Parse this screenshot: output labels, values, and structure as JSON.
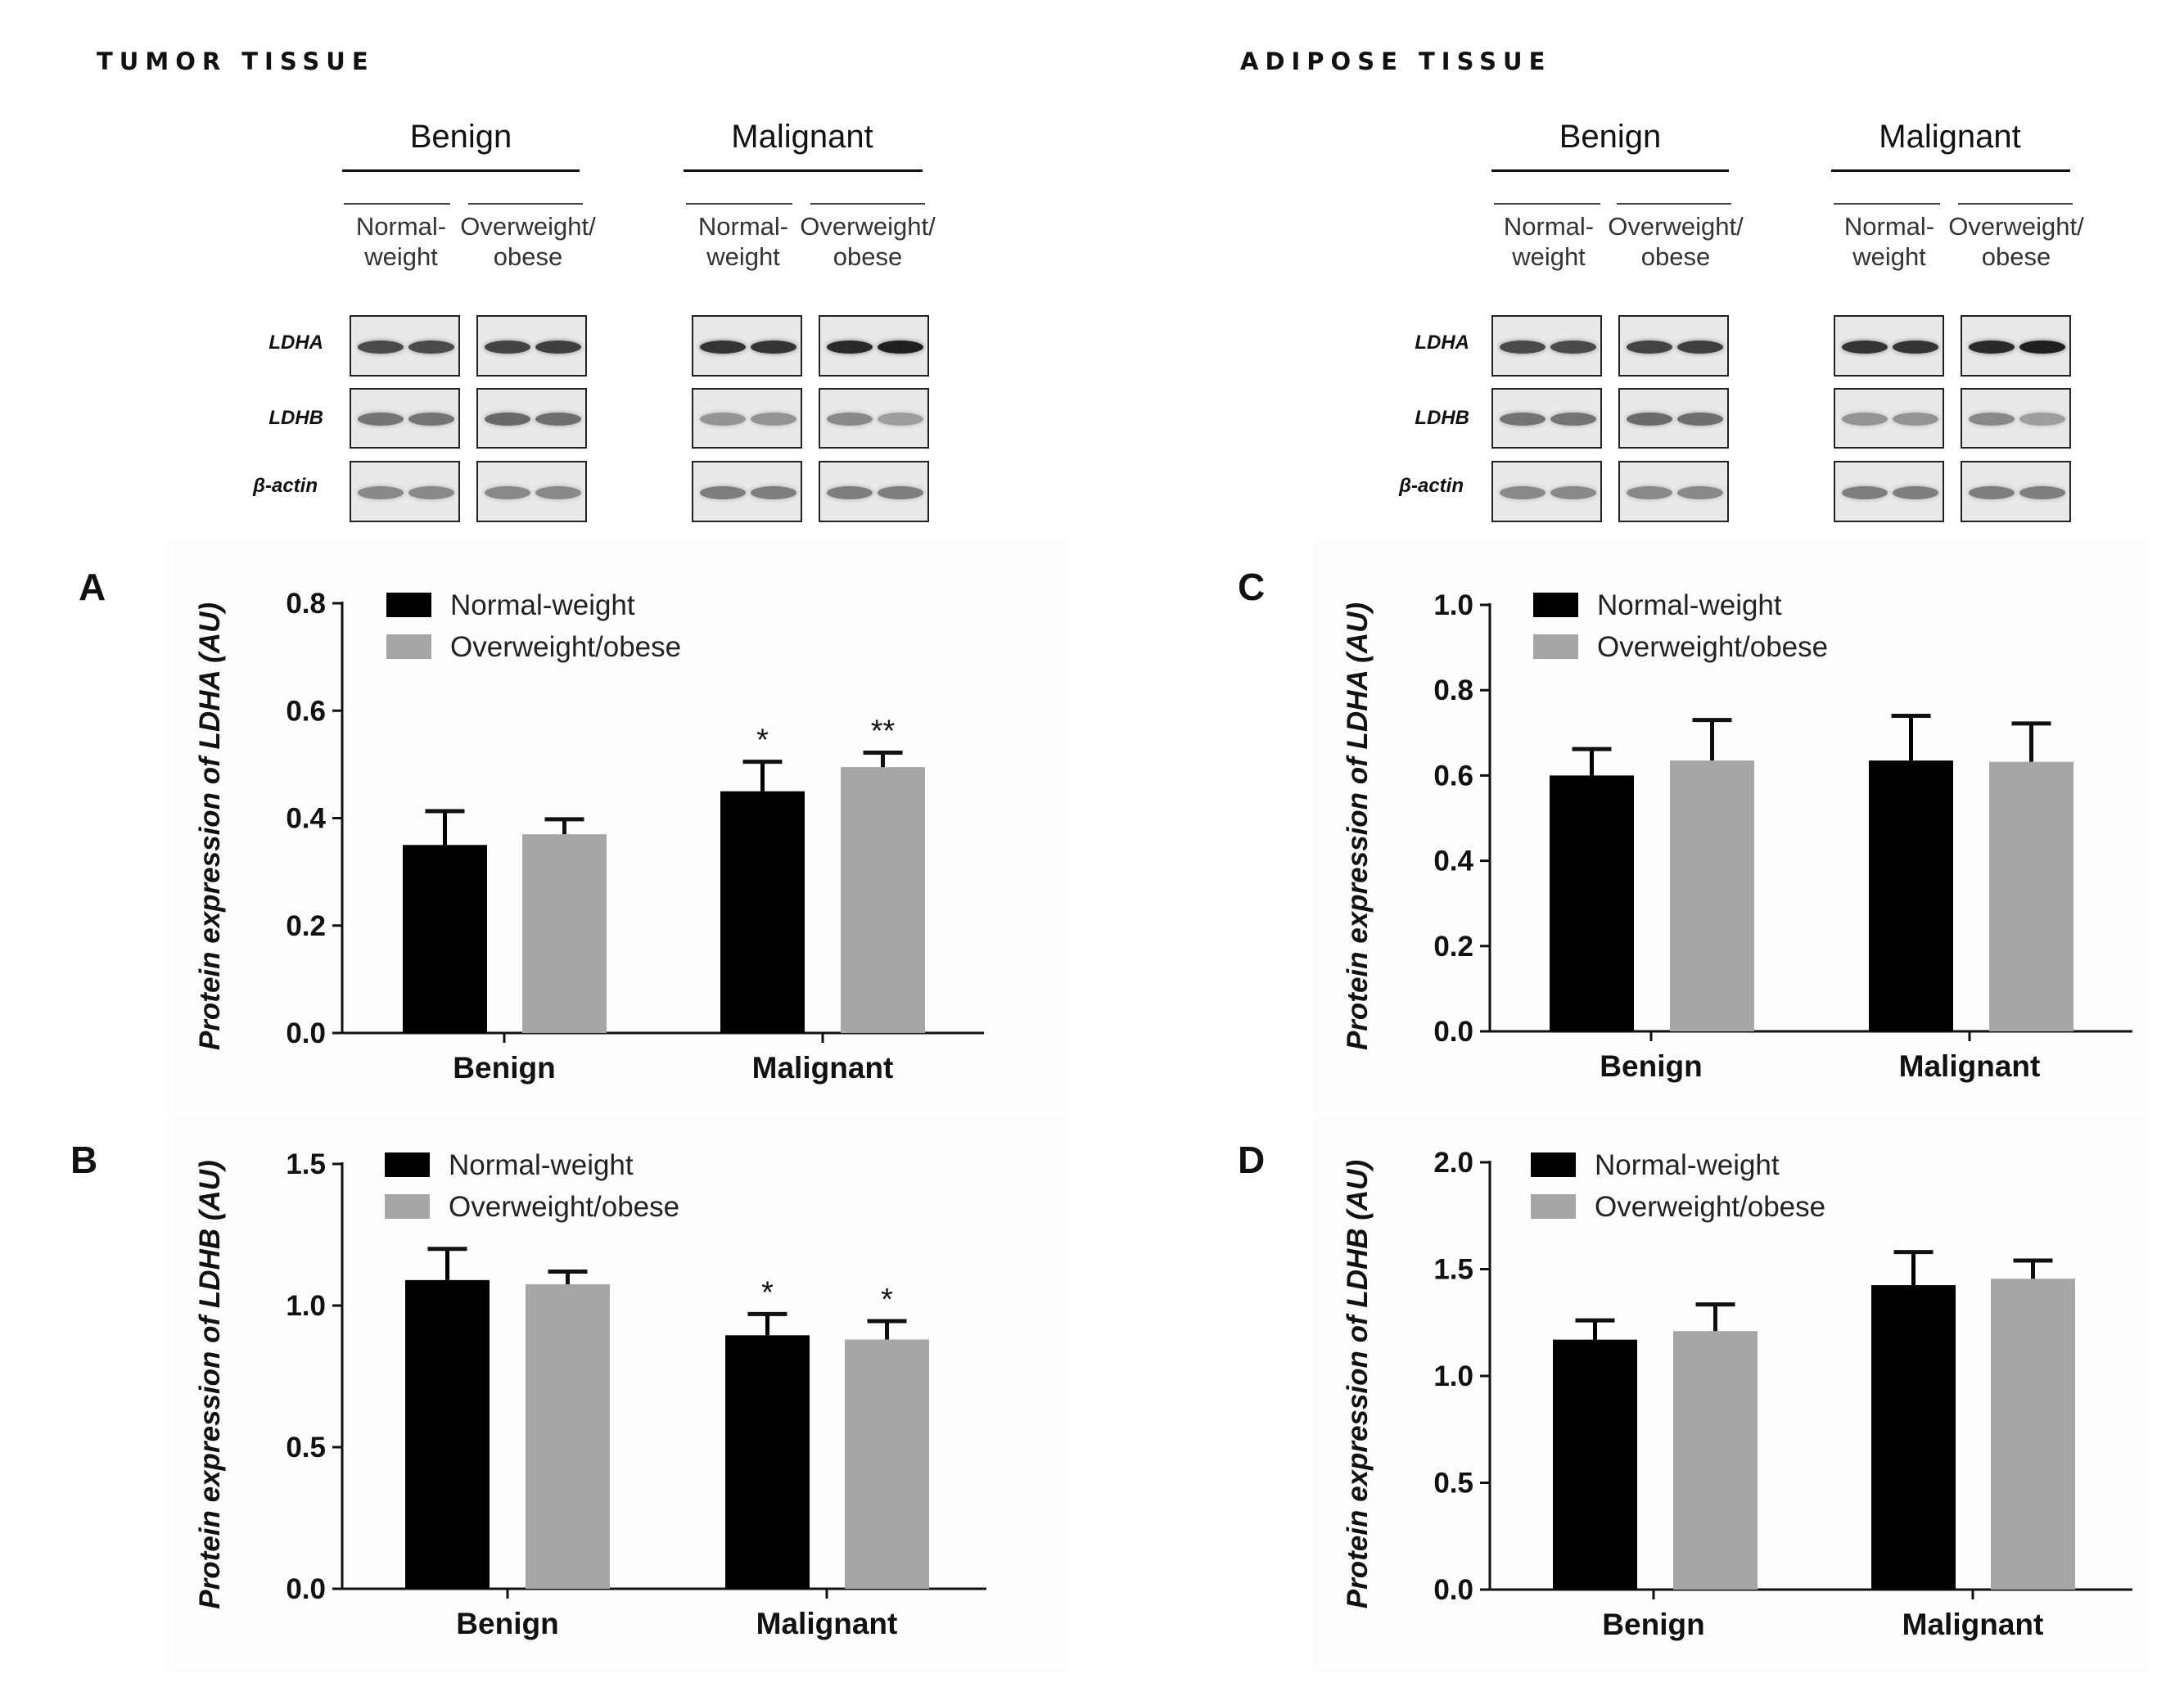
{
  "sections": {
    "tumor": "TUMOR TISSUE",
    "adipose": "ADIPOSE TISSUE"
  },
  "blots": {
    "headers": {
      "benign": "Benign",
      "malignant": "Malignant"
    },
    "groups": {
      "normal": "Normal-\nweight",
      "overweight": "Overweight/\nobese"
    },
    "proteins": {
      "ldha": "LDHA",
      "ldhb": "LDHB",
      "actin": "β-actin"
    }
  },
  "colors": {
    "normal_weight": "#000000",
    "overweight_obese": "#a6a6a8",
    "axis": "#111111"
  },
  "chart_data": [
    {
      "panel": "A",
      "type": "bar",
      "title": "",
      "xlabel": "",
      "ylabel": "Protein expression of LDHA (AU)",
      "categories": [
        "Benign",
        "Malignant"
      ],
      "ylim": [
        0,
        0.8
      ],
      "yticks": [
        "0.0",
        "0.2",
        "0.4",
        "0.6",
        "0.8"
      ],
      "tick_values": [
        0,
        0.2,
        0.4,
        0.6,
        0.8
      ],
      "legend": [
        "Normal-weight",
        "Overweight/obese"
      ],
      "legend_position": "top-left",
      "series": [
        {
          "name": "Normal-weight",
          "values": [
            0.35,
            0.45
          ],
          "errors": [
            0.063,
            0.055
          ],
          "annotations": [
            "",
            "*"
          ]
        },
        {
          "name": "Overweight/obese",
          "values": [
            0.37,
            0.495
          ],
          "errors": [
            0.028,
            0.027
          ],
          "annotations": [
            "",
            "**"
          ]
        }
      ]
    },
    {
      "panel": "B",
      "type": "bar",
      "title": "",
      "xlabel": "",
      "ylabel": "Protein expression of LDHB (AU)",
      "categories": [
        "Benign",
        "Malignant"
      ],
      "ylim": [
        0,
        1.5
      ],
      "yticks": [
        "0.0",
        "0.5",
        "1.0",
        "1.5"
      ],
      "tick_values": [
        0,
        0.5,
        1.0,
        1.5
      ],
      "legend": [
        "Normal-weight",
        "Overweight/obese"
      ],
      "legend_position": "top-left",
      "series": [
        {
          "name": "Normal-weight",
          "values": [
            1.09,
            0.895
          ],
          "errors": [
            0.11,
            0.075
          ],
          "annotations": [
            "",
            "*"
          ]
        },
        {
          "name": "Overweight/obese",
          "values": [
            1.075,
            0.88
          ],
          "errors": [
            0.045,
            0.065
          ],
          "annotations": [
            "",
            "*"
          ]
        }
      ]
    },
    {
      "panel": "C",
      "type": "bar",
      "title": "",
      "xlabel": "",
      "ylabel": "Protein expression of LDHA (AU)",
      "categories": [
        "Benign",
        "Malignant"
      ],
      "ylim": [
        0,
        1.0
      ],
      "yticks": [
        "0.0",
        "0.2",
        "0.4",
        "0.6",
        "0.8",
        "1.0"
      ],
      "tick_values": [
        0,
        0.2,
        0.4,
        0.6,
        0.8,
        1.0
      ],
      "legend": [
        "Normal-weight",
        "Overweight/obese"
      ],
      "legend_position": "top-left",
      "series": [
        {
          "name": "Normal-weight",
          "values": [
            0.6,
            0.635
          ],
          "errors": [
            0.062,
            0.105
          ],
          "annotations": [
            "",
            ""
          ]
        },
        {
          "name": "Overweight/obese",
          "values": [
            0.635,
            0.632
          ],
          "errors": [
            0.095,
            0.09
          ],
          "annotations": [
            "",
            ""
          ]
        }
      ]
    },
    {
      "panel": "D",
      "type": "bar",
      "title": "",
      "xlabel": "",
      "ylabel": "Protein expression of LDHB (AU)",
      "categories": [
        "Benign",
        "Malignant"
      ],
      "ylim": [
        0,
        2.0
      ],
      "yticks": [
        "0.0",
        "0.5",
        "1.0",
        "1.5",
        "2.0"
      ],
      "tick_values": [
        0,
        0.5,
        1.0,
        1.5,
        2.0
      ],
      "legend": [
        "Normal-weight",
        "Overweight/obese"
      ],
      "legend_position": "top-left",
      "series": [
        {
          "name": "Normal-weight",
          "values": [
            1.17,
            1.425
          ],
          "errors": [
            0.09,
            0.155
          ],
          "annotations": [
            "",
            ""
          ]
        },
        {
          "name": "Overweight/obese",
          "values": [
            1.21,
            1.455
          ],
          "errors": [
            0.125,
            0.085
          ],
          "annotations": [
            "",
            ""
          ]
        }
      ]
    }
  ]
}
